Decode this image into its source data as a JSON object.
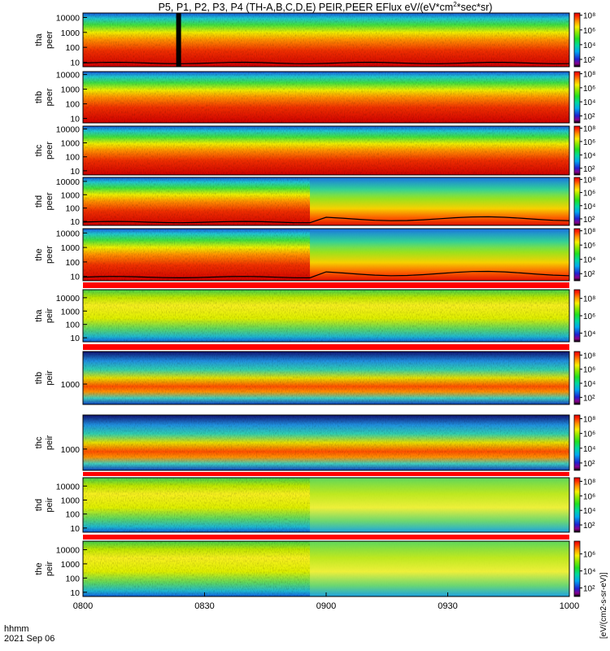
{
  "chart_data": {
    "type": "heatmap",
    "title": "P5, P1, P2, P3, P4 (TH-A,B,C,D,E) PEIR,PEER EFlux eV/(eV*cm²*sec*sr)",
    "title_main": "P5, P1, P2, P3, P4 (TH-A,B,C,D,E) PEIR,PEER EFlux eV/(eV*cm",
    "title_sup": "2",
    "title_tail": "*sec*sr)",
    "xlabel": "hhmm",
    "date_label": "2021 Sep 06",
    "x_range": [
      "0800",
      "1000"
    ],
    "x_ticks": [
      "0800",
      "0830",
      "0900",
      "0930",
      "1000"
    ],
    "x_tick_minutes": [
      0,
      30,
      60,
      90,
      120
    ],
    "colorbar_label": "[eV/(cm2-s-sr-eV)]",
    "panels": [
      {
        "name": "tha-peer",
        "label1": "tha",
        "label2": "peer",
        "species": "electron",
        "y_ticks": [
          "10000",
          "1000",
          "100",
          "10"
        ],
        "y_tick_values": [
          10000,
          1000,
          100,
          10
        ],
        "ylog": [
          0.7,
          4.3
        ],
        "cbar_ticks": [
          "10⁸",
          "10⁶",
          "10⁴",
          "10²"
        ],
        "cbar_tick_values": [
          8,
          6,
          4,
          2
        ],
        "cbar_range": [
          1,
          8.3
        ],
        "transition_min": null,
        "gap_minute": 23,
        "spacecraft_potential": true
      },
      {
        "name": "thb-peer",
        "label1": "thb",
        "label2": "peer",
        "species": "electron",
        "y_ticks": [
          "10000",
          "1000",
          "100",
          "10"
        ],
        "y_tick_values": [
          10000,
          1000,
          100,
          10
        ],
        "ylog": [
          0.7,
          4.2
        ],
        "cbar_ticks": [
          "10⁸",
          "10⁶",
          "10⁴",
          "10²"
        ],
        "cbar_tick_values": [
          8,
          6,
          4,
          2
        ],
        "cbar_range": [
          1,
          8.3
        ],
        "transition_min": null,
        "gap_minute": null,
        "spacecraft_potential": false
      },
      {
        "name": "thc-peer",
        "label1": "thc",
        "label2": "peer",
        "species": "electron",
        "y_ticks": [
          "10000",
          "1000",
          "100",
          "10"
        ],
        "y_tick_values": [
          10000,
          1000,
          100,
          10
        ],
        "ylog": [
          0.7,
          4.2
        ],
        "cbar_ticks": [
          "10⁸",
          "10⁶",
          "10⁴",
          "10²"
        ],
        "cbar_tick_values": [
          8,
          6,
          4,
          2
        ],
        "cbar_range": [
          1,
          8.3
        ],
        "transition_min": null,
        "gap_minute": null,
        "spacecraft_potential": false
      },
      {
        "name": "thd-peer",
        "label1": "thd",
        "label2": "peer",
        "species": "electron",
        "y_ticks": [
          "10000",
          "1000",
          "100",
          "10"
        ],
        "y_tick_values": [
          10000,
          1000,
          100,
          10
        ],
        "ylog": [
          0.7,
          4.3
        ],
        "cbar_ticks": [
          "10⁸",
          "10⁶",
          "10⁴",
          "10²"
        ],
        "cbar_tick_values": [
          8,
          6,
          4,
          2
        ],
        "cbar_range": [
          1,
          8.3
        ],
        "transition_min": 56,
        "gap_minute": null,
        "spacecraft_potential": true
      },
      {
        "name": "the-peer",
        "label1": "the",
        "label2": "peer",
        "species": "electron",
        "y_ticks": [
          "10000",
          "1000",
          "100",
          "10"
        ],
        "y_tick_values": [
          10000,
          1000,
          100,
          10
        ],
        "ylog": [
          0.7,
          4.3
        ],
        "cbar_ticks": [
          "10⁸",
          "10⁶",
          "10⁴",
          "10²"
        ],
        "cbar_tick_values": [
          8,
          6,
          4,
          2
        ],
        "cbar_range": [
          1,
          8.3
        ],
        "transition_min": 56,
        "gap_minute": null,
        "spacecraft_potential": true
      },
      {
        "name": "tha-peir",
        "label1": "tha",
        "label2": "peir",
        "species": "ion",
        "y_ticks": [
          "10000",
          "1000",
          "100",
          "10"
        ],
        "y_tick_values": [
          10000,
          1000,
          100,
          10
        ],
        "ylog": [
          0.7,
          4.6
        ],
        "cbar_ticks": [
          "10⁸",
          "10⁶",
          "10⁴"
        ],
        "cbar_tick_values": [
          8,
          6,
          4
        ],
        "cbar_range": [
          3,
          9
        ],
        "transition_min": null,
        "gap_minute": null,
        "spacecraft_potential": false
      },
      {
        "name": "thb-peir",
        "label1": "thb",
        "label2": "peir",
        "species": "ion",
        "y_ticks": [
          "1000"
        ],
        "y_tick_values": [
          1000
        ],
        "ylog": [
          2.0,
          4.6
        ],
        "cbar_ticks": [
          "10⁸",
          "10⁶",
          "10⁴",
          "10²"
        ],
        "cbar_tick_values": [
          8,
          6,
          4,
          2
        ],
        "cbar_range": [
          1,
          8.5
        ],
        "transition_min": null,
        "gap_minute": null,
        "spacecraft_potential": false
      },
      {
        "name": "thc-peir",
        "label1": "thc",
        "label2": "peir",
        "species": "ion",
        "y_ticks": [
          "1000"
        ],
        "y_tick_values": [
          1000
        ],
        "ylog": [
          2.0,
          4.6
        ],
        "cbar_ticks": [
          "10⁸",
          "10⁶",
          "10⁴",
          "10²"
        ],
        "cbar_tick_values": [
          8,
          6,
          4,
          2
        ],
        "cbar_range": [
          1,
          8.5
        ],
        "transition_min": null,
        "gap_minute": null,
        "spacecraft_potential": false
      },
      {
        "name": "thd-peir",
        "label1": "thd",
        "label2": "peir",
        "species": "ion",
        "y_ticks": [
          "10000",
          "1000",
          "100",
          "10"
        ],
        "y_tick_values": [
          10000,
          1000,
          100,
          10
        ],
        "ylog": [
          0.7,
          4.6
        ],
        "cbar_ticks": [
          "10⁸",
          "10⁶",
          "10⁴",
          "10²"
        ],
        "cbar_tick_values": [
          8,
          6,
          4,
          2
        ],
        "cbar_range": [
          1,
          8.5
        ],
        "transition_min": 56,
        "gap_minute": null,
        "spacecraft_potential": false
      },
      {
        "name": "the-peir",
        "label1": "the",
        "label2": "peir",
        "species": "ion",
        "y_ticks": [
          "10000",
          "1000",
          "100",
          "10"
        ],
        "y_tick_values": [
          10000,
          1000,
          100,
          10
        ],
        "ylog": [
          0.7,
          4.6
        ],
        "cbar_ticks": [
          "10⁶",
          "10⁴",
          "10²"
        ],
        "cbar_tick_values": [
          6,
          4,
          2
        ],
        "cbar_range": [
          1,
          7.5
        ],
        "transition_min": 56,
        "gap_minute": null,
        "spacecraft_potential": false
      }
    ]
  }
}
